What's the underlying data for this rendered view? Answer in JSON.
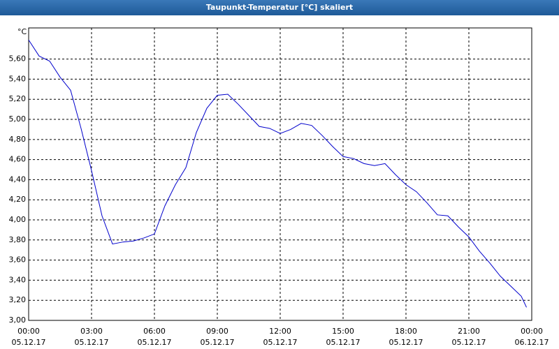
{
  "chart_data": {
    "type": "line",
    "title": "Taupunkt-Temperatur [°C] skaliert",
    "y_label": "°C",
    "x": [
      0,
      0.5,
      1,
      1.5,
      2,
      2.5,
      3,
      3.5,
      4,
      4.5,
      5,
      5.5,
      6,
      6.5,
      7,
      7.5,
      8,
      8.5,
      9,
      9.5,
      10,
      10.5,
      11,
      11.5,
      12,
      12.5,
      13,
      13.5,
      14,
      14.5,
      15,
      15.5,
      16,
      16.5,
      17,
      17.5,
      18,
      18.5,
      19,
      19.5,
      20,
      20.5,
      21,
      21.5,
      22,
      22.5,
      23,
      23.5,
      23.75
    ],
    "series": [
      {
        "name": "Taupunkt-Temperatur",
        "color": "#0000cc",
        "values": [
          5.79,
          5.63,
          5.58,
          5.42,
          5.29,
          4.91,
          4.49,
          4.04,
          3.76,
          3.78,
          3.79,
          3.82,
          3.86,
          4.14,
          4.35,
          4.52,
          4.87,
          5.11,
          5.24,
          5.25,
          5.15,
          5.04,
          4.93,
          4.91,
          4.86,
          4.9,
          4.96,
          4.94,
          4.84,
          4.73,
          4.63,
          4.61,
          4.56,
          4.54,
          4.56,
          4.45,
          4.35,
          4.28,
          4.17,
          4.05,
          4.04,
          3.93,
          3.83,
          3.69,
          3.57,
          3.44,
          3.34,
          3.24,
          3.13
        ]
      }
    ],
    "xlim": [
      0,
      24
    ],
    "xticks": [
      {
        "value": 0,
        "label": "00:00"
      },
      {
        "value": 3,
        "label": "03:00"
      },
      {
        "value": 6,
        "label": "06:00"
      },
      {
        "value": 9,
        "label": "09:00"
      },
      {
        "value": 12,
        "label": "12:00"
      },
      {
        "value": 15,
        "label": "15:00"
      },
      {
        "value": 18,
        "label": "18:00"
      },
      {
        "value": 21,
        "label": "21:00"
      },
      {
        "value": 24,
        "label": "00:00"
      }
    ],
    "xtick_dates": [
      "05.12.17",
      "05.12.17",
      "05.12.17",
      "05.12.17",
      "05.12.17",
      "05.12.17",
      "05.12.17",
      "05.12.17",
      "06.12.17"
    ],
    "ylim": [
      3.0,
      5.91
    ],
    "yticks": [
      {
        "value": 3.0,
        "label": "3,00"
      },
      {
        "value": 3.2,
        "label": "3,20"
      },
      {
        "value": 3.4,
        "label": "3,40"
      },
      {
        "value": 3.6,
        "label": "3,60"
      },
      {
        "value": 3.8,
        "label": "3,80"
      },
      {
        "value": 4.0,
        "label": "4,00"
      },
      {
        "value": 4.2,
        "label": "4,20"
      },
      {
        "value": 4.4,
        "label": "4,40"
      },
      {
        "value": 4.6,
        "label": "4,60"
      },
      {
        "value": 4.8,
        "label": "4,80"
      },
      {
        "value": 5.0,
        "label": "5,00"
      },
      {
        "value": 5.2,
        "label": "5,20"
      },
      {
        "value": 5.4,
        "label": "5,40"
      },
      {
        "value": 5.6,
        "label": "5,60"
      }
    ],
    "grid": true
  }
}
